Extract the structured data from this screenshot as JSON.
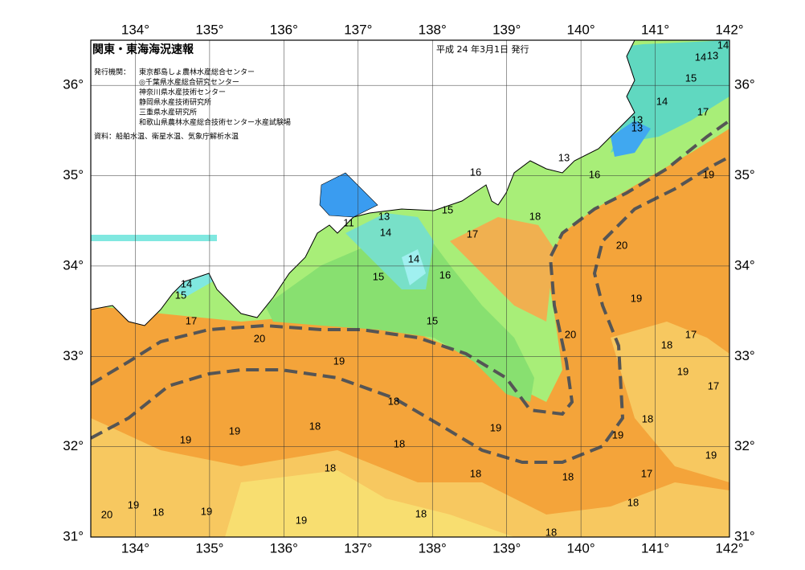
{
  "map": {
    "title": "関東・東海海況速報",
    "issued": "平成 24 年3月1日 発行",
    "agency_heading": "発行機関：",
    "agencies": [
      "東京都島しょ農林水産総合センター",
      "◎千葉県水産総合研究センター",
      "神奈川県水産技術センター",
      "静岡県水産技術研究所",
      "三重県水産研究所",
      "和歌山県農林水産総合技術センター水産試験場"
    ],
    "source": "資料：船舶水温、衛星水温、気象庁解析水温",
    "lonlim": [
      133.4,
      142
    ],
    "latlim": [
      31,
      36.5
    ],
    "lon_ticks": [
      {
        "value": 134,
        "label": "134°"
      },
      {
        "value": 135,
        "label": "135°"
      },
      {
        "value": 136,
        "label": "136°"
      },
      {
        "value": 137,
        "label": "137°"
      },
      {
        "value": 138,
        "label": "138°"
      },
      {
        "value": 139,
        "label": "139°"
      },
      {
        "value": 140,
        "label": "140°"
      },
      {
        "value": 141,
        "label": "141°"
      },
      {
        "value": 142,
        "label": "142°"
      }
    ],
    "lat_ticks": [
      {
        "value": 31,
        "label": "31°"
      },
      {
        "value": 32,
        "label": "32°"
      },
      {
        "value": 33,
        "label": "33°"
      },
      {
        "value": 34,
        "label": "34°"
      },
      {
        "value": 35,
        "label": "35°"
      },
      {
        "value": 36,
        "label": "36°"
      }
    ],
    "contour_labels": [
      14,
      14,
      13,
      15,
      14,
      13,
      13,
      17,
      19,
      16,
      13,
      16,
      18,
      15,
      17,
      13,
      14,
      11,
      14,
      15,
      16,
      20,
      19,
      17,
      18,
      19,
      17,
      18,
      19,
      19,
      17,
      18,
      18,
      15,
      20,
      20,
      19,
      18,
      19,
      18,
      18,
      19,
      19,
      18,
      18,
      18,
      18,
      19,
      19,
      20,
      19,
      18,
      17,
      14,
      15
    ]
  }
}
